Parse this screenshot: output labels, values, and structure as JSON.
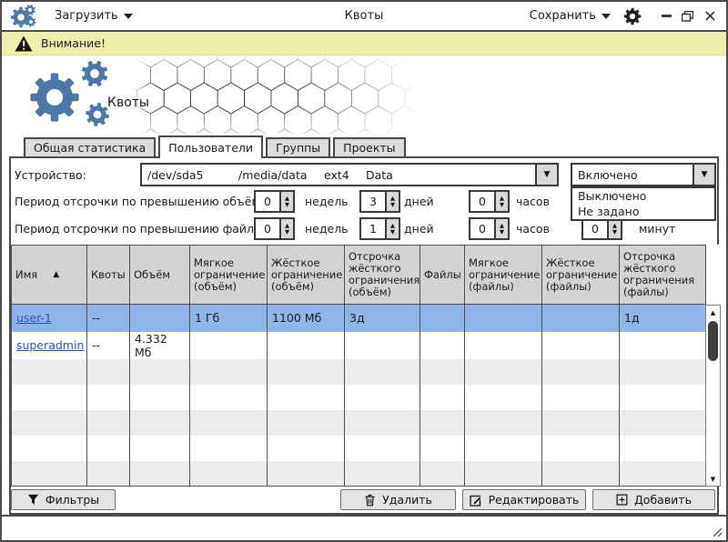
{
  "titlebar": {
    "load": "Загрузить",
    "title": "Квоты",
    "save": "Сохранить"
  },
  "warning": {
    "text": "Внимание!"
  },
  "hero": {
    "app_name": "Квоты"
  },
  "tabs": [
    {
      "label": "Общая статистика",
      "active": false
    },
    {
      "label": "Пользователи",
      "active": true
    },
    {
      "label": "Группы",
      "active": false
    },
    {
      "label": "Проекты",
      "active": false
    }
  ],
  "device": {
    "label": "Устройство:",
    "path": "/dev/sda5",
    "mount": "/media/data",
    "fs": "ext4",
    "name": "Data"
  },
  "state_dropdown": {
    "selected": "Включено",
    "options": [
      "Выключено",
      "Не задано"
    ]
  },
  "grace_volume": {
    "label": "Период отсрочки по превышению объёма:",
    "weeks": "0",
    "weeks_unit": "недель",
    "days": "3",
    "days_unit": "дней",
    "hours": "0",
    "hours_unit": "часов"
  },
  "grace_files": {
    "label": "Период отсрочки по превышению файлов:",
    "weeks": "0",
    "weeks_unit": "недель",
    "days": "1",
    "days_unit": "дней",
    "hours": "0",
    "hours_unit": "часов",
    "minutes": "0",
    "minutes_unit": "минут"
  },
  "table": {
    "columns": [
      "Имя",
      "Квоты",
      "Объём",
      "Мягкое ограничение (объём)",
      "Жёсткое ограничение (объём)",
      "Отсрочка жёсткого ограничения (объём)",
      "Файлы",
      "Мягкое ограничение (файлы)",
      "Жёсткое ограничение (файлы)",
      "Отсрочка жёсткого ограничения (файлы)"
    ],
    "rows": [
      {
        "name": "user-1",
        "selected": true,
        "cells": [
          "--",
          "",
          "1 Гб",
          "1100 Мб",
          "3д",
          "",
          "",
          "",
          "1д"
        ]
      },
      {
        "name": "superadmin",
        "selected": false,
        "cells": [
          "--",
          "4.332 Мб",
          "",
          "",
          "",
          "",
          "",
          "",
          ""
        ]
      }
    ]
  },
  "buttons": {
    "filters": "Фильтры",
    "delete": "Удалить",
    "edit": "Редактировать",
    "add": "Добавить"
  },
  "icons": {
    "dropdown_arrow": "▼",
    "spinner_up": "▲",
    "spinner_down": "▼",
    "sort_asc": "▲",
    "scroll_up": "▲",
    "scroll_down": "▼",
    "close": "×",
    "gear": "⚙"
  },
  "colors": {
    "accent_blue": "#4e79a7",
    "warning_bg": "#f0eeab",
    "selected_row": "#8fb6ea"
  }
}
